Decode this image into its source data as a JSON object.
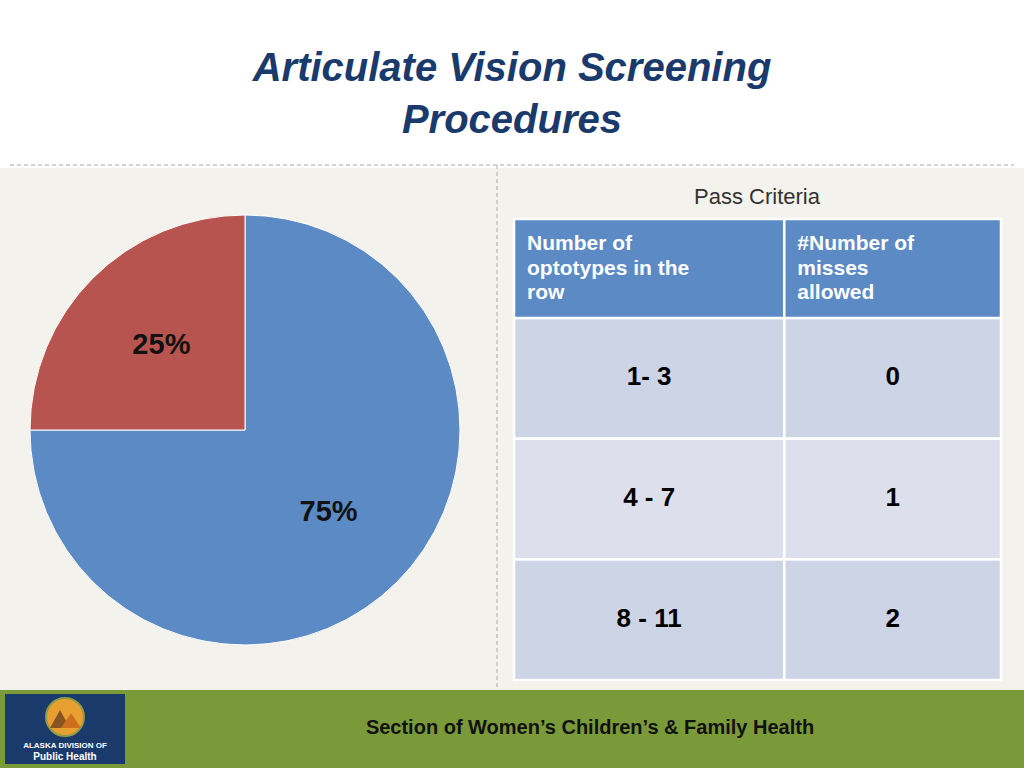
{
  "chart_data": {
    "type": "pie",
    "title": "Articulate Vision Screening",
    "subtitle": "Procedures",
    "values": [
      75,
      25
    ],
    "value_labels": [
      "75%",
      "25%"
    ],
    "colors": [
      "#5b8ac4",
      "#b85450"
    ],
    "data_labels": true,
    "annotations": [
      "Pass Criteria",
      "Section of Women’s Children’s & Family Health",
      "ALASKA DIVISION OF",
      "Public Health"
    ],
    "table": {
      "columns": [
        "Number of\noptotypes in the\nrow",
        "#Number of\nmisses\nallowed"
      ],
      "rows": [
        [
          "1- 3",
          "0"
        ],
        [
          "4 - 7",
          "1"
        ],
        [
          "8 - 11",
          "2"
        ]
      ]
    }
  }
}
